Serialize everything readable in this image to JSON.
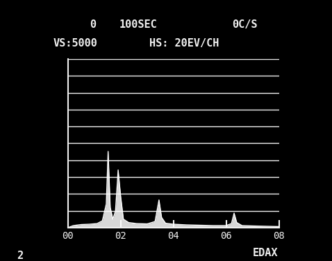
{
  "chart_data": {
    "type": "line",
    "annotations": [
      "0",
      "100SEC",
      "0C/S",
      "VS:5000",
      "HS: 20EV/CH",
      "EDAX",
      "2"
    ],
    "x": [
      0.0,
      0.2,
      0.5,
      0.8,
      1.1,
      1.3,
      1.45,
      1.52,
      1.6,
      1.7,
      1.8,
      1.9,
      2.0,
      2.1,
      2.3,
      2.6,
      3.0,
      3.3,
      3.45,
      3.55,
      3.7,
      4.0,
      4.5,
      5.0,
      5.5,
      6.0,
      6.2,
      6.3,
      6.4,
      6.6,
      7.0,
      7.5,
      8.0
    ],
    "values": [
      0,
      60,
      90,
      100,
      120,
      200,
      700,
      2260,
      600,
      250,
      500,
      1710,
      900,
      250,
      150,
      120,
      110,
      180,
      820,
      300,
      130,
      100,
      80,
      70,
      60,
      60,
      120,
      430,
      150,
      60,
      50,
      40,
      30
    ],
    "color": "#ffffff",
    "xlim": [
      0,
      8
    ],
    "xticks": [
      {
        "value": 0,
        "label": "00"
      },
      {
        "value": 2,
        "label": "02"
      },
      {
        "value": 4,
        "label": "04"
      },
      {
        "value": 6,
        "label": "06"
      },
      {
        "value": 8,
        "label": "08"
      }
    ],
    "ylim": [
      0,
      5000
    ],
    "yticks": [
      0,
      500,
      1000,
      1500,
      2000,
      2500,
      3000,
      3500,
      4000,
      4500,
      5000
    ],
    "grid": true,
    "tick_labels": "x"
  }
}
